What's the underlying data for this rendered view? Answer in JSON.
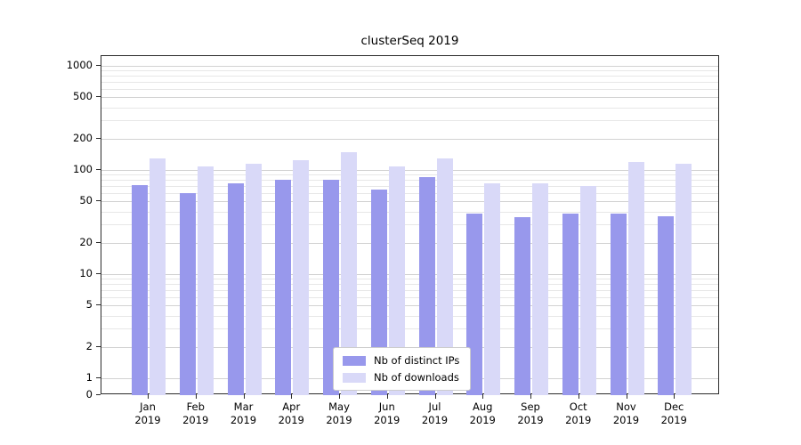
{
  "chart_data": {
    "type": "bar",
    "title": "clusterSeq 2019",
    "y_scale": "symlog",
    "grid": true,
    "legend_position": "lower center",
    "categories": [
      "Jan 2019",
      "Feb 2019",
      "Mar 2019",
      "Apr 2019",
      "May 2019",
      "Jun 2019",
      "Jul 2019",
      "Aug 2019",
      "Sep 2019",
      "Oct 2019",
      "Nov 2019",
      "Dec 2019"
    ],
    "series": [
      {
        "name": "Nb of distinct IPs",
        "color": "#9898ec",
        "values": [
          72,
          60,
          75,
          80,
          80,
          65,
          85,
          38,
          35,
          38,
          38,
          36
        ]
      },
      {
        "name": "Nb of downloads",
        "color": "#d9d9f8",
        "values": [
          130,
          108,
          115,
          125,
          148,
          108,
          130,
          75,
          75,
          70,
          120,
          115
        ]
      }
    ],
    "y_ticks": [
      0,
      1,
      2,
      5,
      10,
      20,
      50,
      100,
      200,
      500,
      1000
    ],
    "ylim": [
      0,
      1250
    ],
    "xlabel": "",
    "ylabel": ""
  }
}
